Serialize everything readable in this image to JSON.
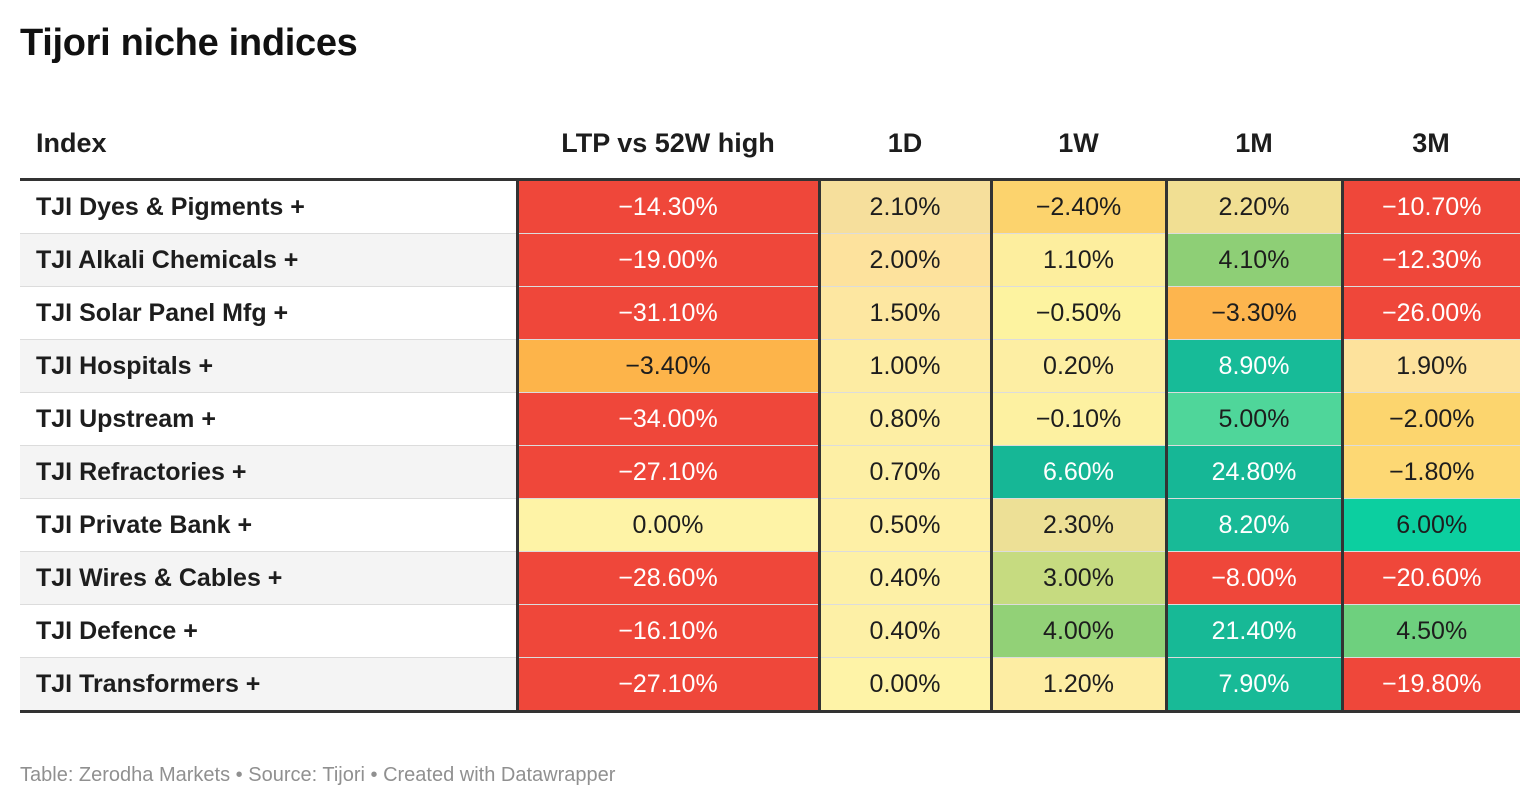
{
  "title": "Tijori niche indices",
  "columns": {
    "index": "Index",
    "ltp": "LTP vs 52W high",
    "d1": "1D",
    "w1": "1W",
    "m1": "1M",
    "m3": "3M"
  },
  "footer": {
    "table": "Table: Zerodha Markets",
    "sep1": " • ",
    "source": "Source: Tijori",
    "sep2": " • ",
    "created": "Created with Datawrapper"
  },
  "chart_data": {
    "type": "table",
    "title": "Tijori niche indices",
    "columns": [
      "Index",
      "LTP vs 52W high",
      "1D",
      "1W",
      "1M",
      "3M"
    ],
    "rows": [
      {
        "name": "TJI Dyes & Pigments +",
        "values": [
          "−14.30%",
          "2.10%",
          "−2.40%",
          "2.20%",
          "−10.70%"
        ],
        "numeric": [
          -14.3,
          2.1,
          -2.4,
          2.2,
          -10.7
        ],
        "colors": [
          "#ef473a",
          "#f6df9c",
          "#fcd36d",
          "#f1df93",
          "#ef473a"
        ]
      },
      {
        "name": "TJI Alkali Chemicals +",
        "values": [
          "−19.00%",
          "2.00%",
          "1.10%",
          "4.10%",
          "−12.30%"
        ],
        "numeric": [
          -19.0,
          2.0,
          1.1,
          4.1,
          -12.3
        ],
        "colors": [
          "#ef473a",
          "#fde29d",
          "#fdee9e",
          "#8ecf76",
          "#ef473a"
        ]
      },
      {
        "name": "TJI Solar Panel Mfg +",
        "values": [
          "−31.10%",
          "1.50%",
          "−0.50%",
          "−3.30%",
          "−26.00%"
        ],
        "numeric": [
          -31.1,
          1.5,
          -0.5,
          -3.3,
          -26.0
        ],
        "colors": [
          "#ef473a",
          "#fde7a1",
          "#fdf3a0",
          "#fdb54e",
          "#ef473a"
        ]
      },
      {
        "name": "TJI Hospitals +",
        "values": [
          "−3.40%",
          "1.00%",
          "0.20%",
          "8.90%",
          "1.90%"
        ],
        "numeric": [
          -3.4,
          1.0,
          0.2,
          8.9,
          1.9
        ],
        "colors": [
          "#fdb44a",
          "#fdeca3",
          "#fdeea3",
          "#17bb98",
          "#fde29c"
        ]
      },
      {
        "name": "TJI Upstream +",
        "values": [
          "−34.00%",
          "0.80%",
          "−0.10%",
          "5.00%",
          "−2.00%"
        ],
        "numeric": [
          -34.0,
          0.8,
          -0.1,
          5.0,
          -2.0
        ],
        "colors": [
          "#ef473a",
          "#fdeea4",
          "#fdf1a1",
          "#4fd69a",
          "#fcd56e"
        ]
      },
      {
        "name": "TJI Refractories +",
        "values": [
          "−27.10%",
          "0.70%",
          "6.60%",
          "24.80%",
          "−1.80%"
        ],
        "numeric": [
          -27.1,
          0.7,
          6.6,
          24.8,
          -1.8
        ],
        "colors": [
          "#ef473a",
          "#fdefa5",
          "#16b796",
          "#16b796",
          "#fdd874"
        ]
      },
      {
        "name": "TJI Private Bank +",
        "values": [
          "0.00%",
          "0.50%",
          "2.30%",
          "8.20%",
          "6.00%"
        ],
        "numeric": [
          0.0,
          0.5,
          2.3,
          8.2,
          6.0
        ],
        "colors": [
          "#fef3a6",
          "#fef0a6",
          "#ede096",
          "#18ba97",
          "#0ccfa0"
        ]
      },
      {
        "name": "TJI Wires & Cables +",
        "values": [
          "−28.60%",
          "0.40%",
          "3.00%",
          "−8.00%",
          "−20.60%"
        ],
        "numeric": [
          -28.6,
          0.4,
          3.0,
          -8.0,
          -20.6
        ],
        "colors": [
          "#ef473a",
          "#fdf0a6",
          "#c6db80",
          "#ef473a",
          "#ef473a"
        ]
      },
      {
        "name": "TJI Defence +",
        "values": [
          "−16.10%",
          "0.40%",
          "4.00%",
          "21.40%",
          "4.50%"
        ],
        "numeric": [
          -16.1,
          0.4,
          4.0,
          21.4,
          4.5
        ],
        "colors": [
          "#ef473a",
          "#fdf0a6",
          "#92d177",
          "#17b996",
          "#6ed07e"
        ]
      },
      {
        "name": "TJI Transformers +",
        "values": [
          "−27.10%",
          "0.00%",
          "1.20%",
          "7.90%",
          "−19.80%"
        ],
        "numeric": [
          -27.1,
          0.0,
          1.2,
          7.9,
          -19.8
        ],
        "colors": [
          "#ef473a",
          "#fef3a7",
          "#fdeda3",
          "#18ba97",
          "#ef473a"
        ]
      }
    ]
  }
}
